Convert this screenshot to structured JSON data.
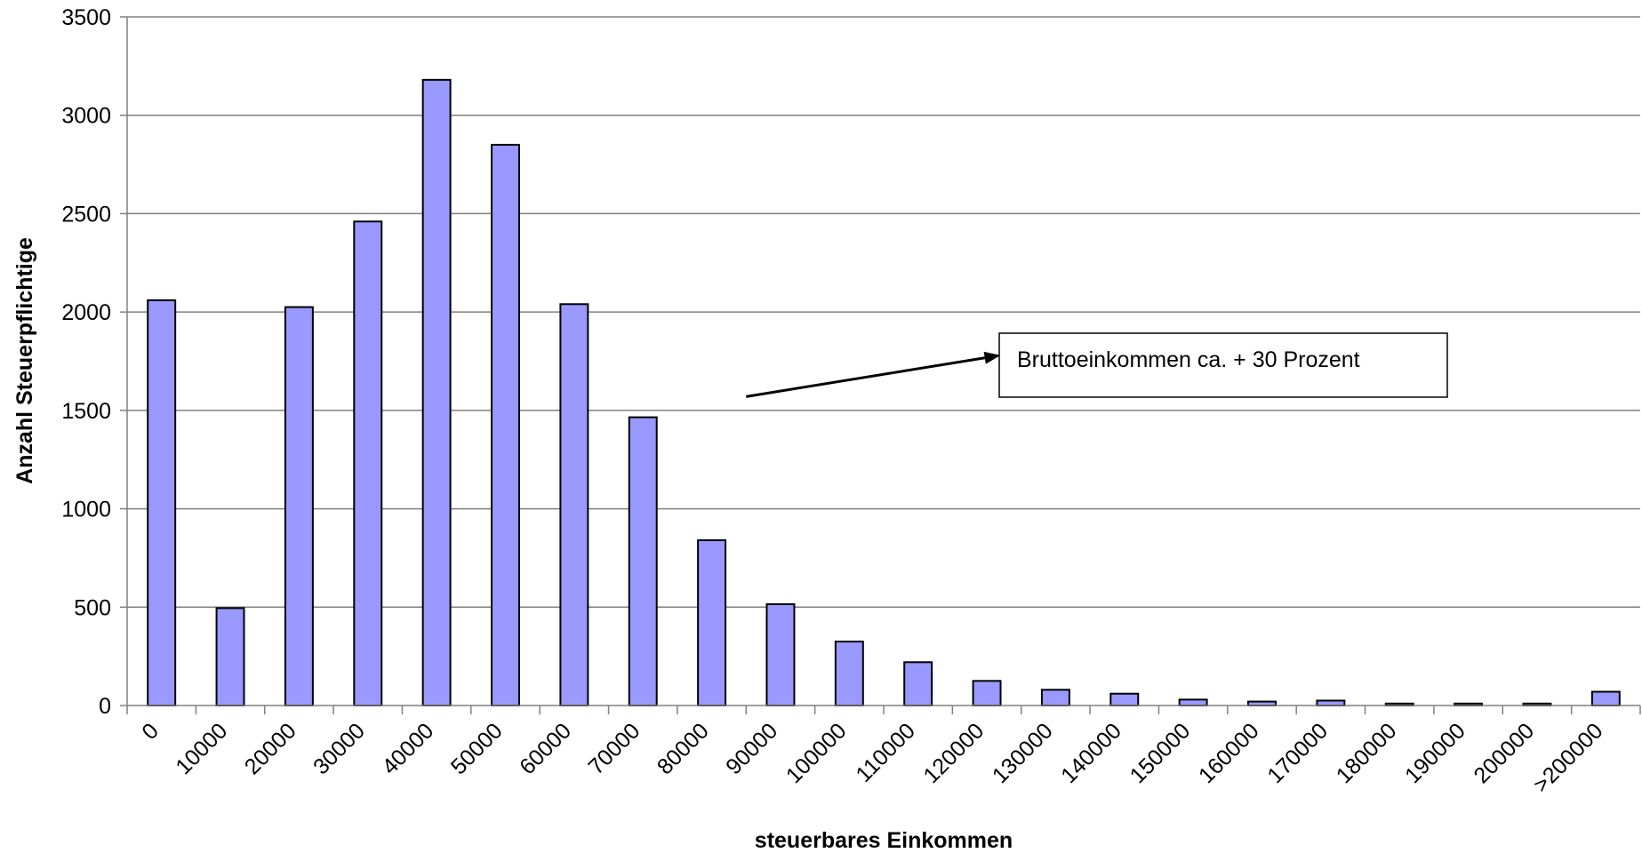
{
  "chart_data": {
    "type": "bar",
    "xlabel": "steuerbares Einkommen",
    "ylabel": "Anzahl Steuerpflichtige",
    "categories": [
      "0",
      "10000",
      "20000",
      "30000",
      "40000",
      "50000",
      "60000",
      "70000",
      "80000",
      "90000",
      "100000",
      "110000",
      "120000",
      "130000",
      "140000",
      "150000",
      "160000",
      "170000",
      "180000",
      "190000",
      "200000",
      ">200000"
    ],
    "values": [
      2060,
      495,
      2025,
      2460,
      3180,
      2850,
      2040,
      1465,
      840,
      515,
      325,
      220,
      125,
      80,
      60,
      30,
      20,
      25,
      10,
      10,
      10,
      70
    ],
    "ylim": [
      0,
      3500
    ],
    "yticks": [
      0,
      500,
      1000,
      1500,
      2000,
      2500,
      3000,
      3500
    ],
    "grid": "horizontal",
    "legend": "none",
    "bar_color": "#9999ff",
    "annotation": {
      "text": "Bruttoeinkommen ca. + 30 Prozent",
      "arrow_from": [
        85000,
        1570
      ],
      "arrow_to": [
        122000,
        1780
      ]
    }
  }
}
